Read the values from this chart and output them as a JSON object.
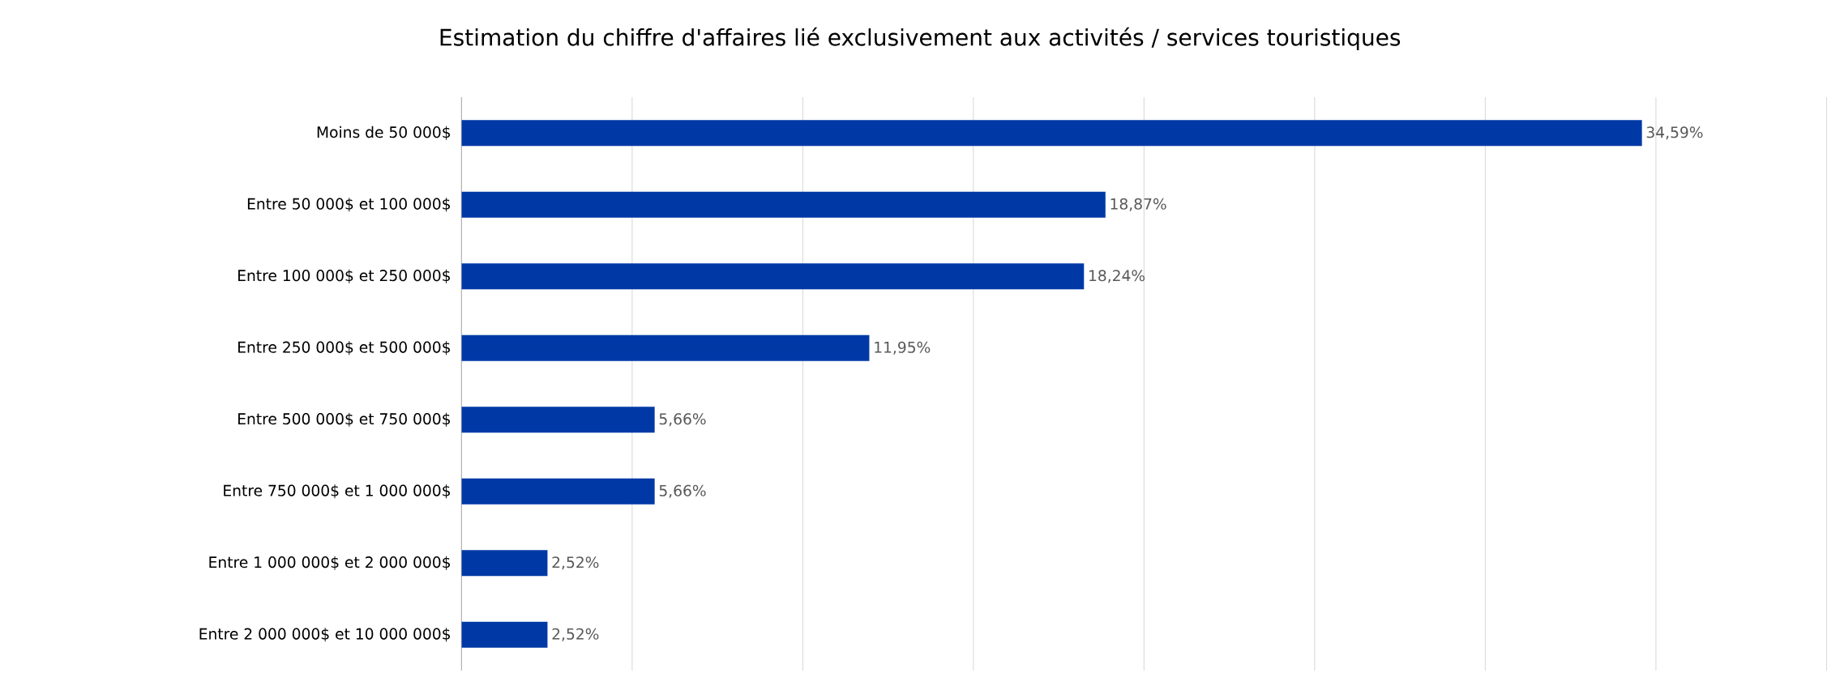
{
  "chart_data": {
    "type": "bar",
    "orientation": "horizontal",
    "title": "Estimation du chiffre d'affaires lié exclusivement aux activités / services touristiques",
    "categories": [
      "Moins de 50 000$",
      "Entre 50 000$ et 100 000$",
      "Entre 100 000$ et 250 000$",
      "Entre 250 000$ et 500 000$",
      "Entre 500 000$ et 750 000$",
      "Entre 750 000$ et 1 000 000$",
      "Entre 1 000 000$ et 2 000 000$",
      "Entre 2 000 000$ et 10 000 000$"
    ],
    "values": [
      34.59,
      18.87,
      18.24,
      11.95,
      5.66,
      5.66,
      2.52,
      2.52
    ],
    "value_labels": [
      "34,59%",
      "18,87%",
      "18,24%",
      "11,95%",
      "5,66%",
      "5,66%",
      "2,52%",
      "2,52%"
    ],
    "color": "#0039a6",
    "grid": "x",
    "tick_labels": "y"
  }
}
